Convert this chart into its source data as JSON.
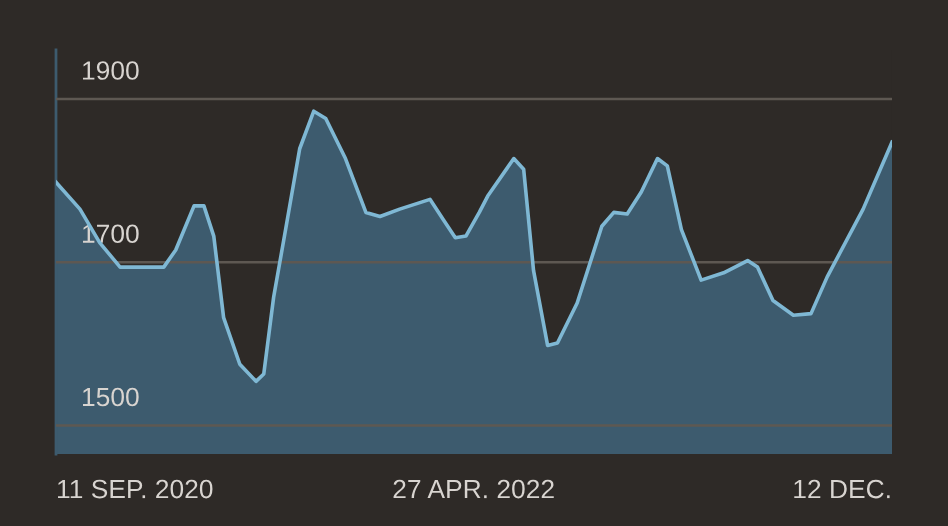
{
  "chart_data": {
    "type": "area",
    "x": [
      "2020-09-11",
      "2020-10-15",
      "2020-11-12",
      "2020-12-11",
      "2021-01-08",
      "2021-02-11",
      "2021-02-28",
      "2021-03-26",
      "2021-04-09",
      "2021-04-23",
      "2021-05-07",
      "2021-05-30",
      "2021-06-22",
      "2021-07-03",
      "2021-07-17",
      "2021-08-03",
      "2021-08-23",
      "2021-09-12",
      "2021-09-29",
      "2021-10-27",
      "2021-11-25",
      "2021-12-15",
      "2022-01-12",
      "2022-02-24",
      "2022-03-15",
      "2022-04-01",
      "2022-04-16",
      "2022-05-05",
      "2022-05-17",
      "2022-06-23",
      "2022-07-07",
      "2022-07-21",
      "2022-08-10",
      "2022-08-24",
      "2022-09-21",
      "2022-10-26",
      "2022-11-12",
      "2022-12-01",
      "2022-12-21",
      "2023-01-13",
      "2023-01-27",
      "2023-02-16",
      "2023-03-16",
      "2023-04-17",
      "2023-05-21",
      "2023-06-04",
      "2023-06-26",
      "2023-07-25",
      "2023-08-19",
      "2023-09-11",
      "2023-11-01",
      "2023-12-12"
    ],
    "series": [
      {
        "color": "#7fb8d4",
        "values": [
          1798,
          1765,
          1724,
          1694,
          1694,
          1694,
          1715,
          1769,
          1769,
          1732,
          1632,
          1575,
          1554,
          1563,
          1657,
          1740,
          1839,
          1885,
          1876,
          1827,
          1761,
          1756,
          1765,
          1777,
          1752,
          1730,
          1732,
          1761,
          1781,
          1827,
          1814,
          1690,
          1598,
          1601,
          1650,
          1744,
          1761,
          1759,
          1786,
          1827,
          1818,
          1740,
          1678,
          1687,
          1702,
          1694,
          1653,
          1635,
          1637,
          1682,
          1765,
          1847
        ]
      }
    ],
    "xlim": [
      "2020-09-11",
      "2023-12-12"
    ],
    "xticks": [
      {
        "value": "2020-09-11",
        "label": "11 SEP. 2020"
      },
      {
        "value": "2022-04-27",
        "label": "27 APR. 2022"
      },
      {
        "value": "2023-12-12",
        "label": "12 DEC."
      }
    ],
    "ylim": [
      1465,
      1960
    ],
    "yticks": [
      1500,
      1700,
      1900
    ],
    "grid": "y"
  }
}
